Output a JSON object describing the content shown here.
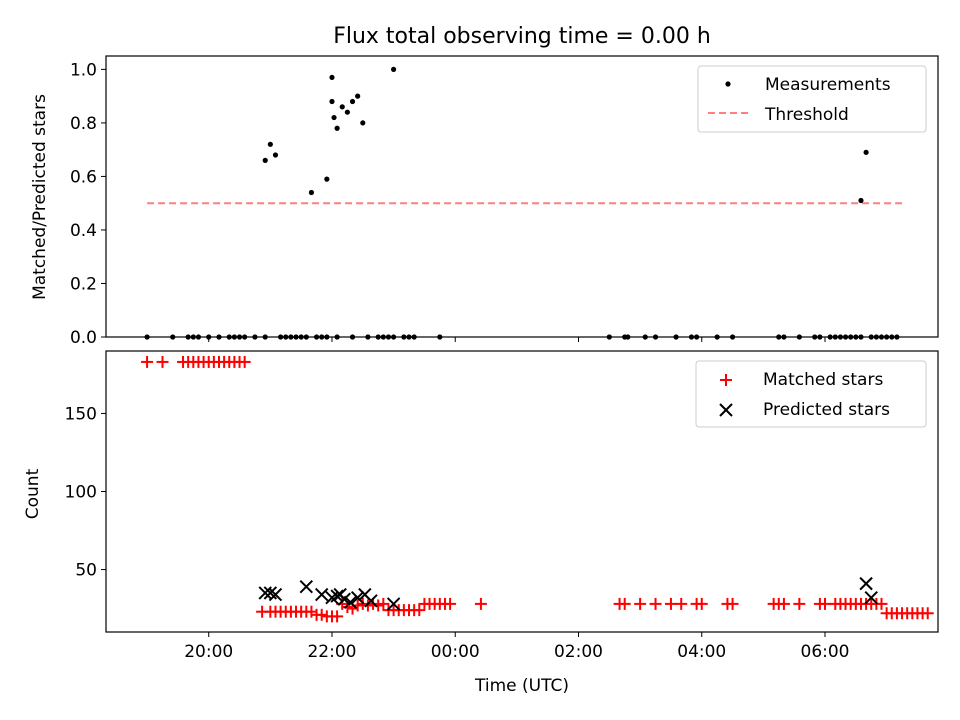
{
  "figure": {
    "title": "Flux total observing time = 0.00 h"
  },
  "chart_data": [
    {
      "type": "scatter",
      "ylabel": "Matched/Predicted stars",
      "xlim": [
        "18:20",
        "07:50"
      ],
      "ylim": [
        0,
        1.05
      ],
      "yticks": [
        0.0,
        0.2,
        0.4,
        0.6,
        0.8,
        1.0
      ],
      "ytick_labels": [
        "0.0",
        "0.2",
        "0.4",
        "0.6",
        "0.8",
        "1.0"
      ],
      "grid": false,
      "legend": {
        "placement": "upper right",
        "entries": [
          {
            "label": "Measurements",
            "marker": "dot",
            "color": "#000000"
          },
          {
            "label": "Threshold",
            "marker": "dashed-line",
            "color": "#ff7f7f"
          }
        ]
      },
      "threshold": {
        "name": "Threshold",
        "value": 0.5,
        "x_start": "19:00",
        "x_end": "07:15",
        "color": "#ff7f7f",
        "style": "dashed"
      },
      "series": [
        {
          "name": "Measurements",
          "color": "#000000",
          "points": [
            [
              "19:00",
              0
            ],
            [
              "19:25",
              0
            ],
            [
              "19:40",
              0
            ],
            [
              "19:45",
              0
            ],
            [
              "19:50",
              0
            ],
            [
              "20:00",
              0
            ],
            [
              "20:10",
              0
            ],
            [
              "20:20",
              0
            ],
            [
              "20:25",
              0
            ],
            [
              "20:30",
              0
            ],
            [
              "20:35",
              0
            ],
            [
              "20:45",
              0
            ],
            [
              "20:55",
              0
            ],
            [
              "21:10",
              0
            ],
            [
              "21:15",
              0
            ],
            [
              "21:20",
              0
            ],
            [
              "21:25",
              0
            ],
            [
              "21:30",
              0
            ],
            [
              "21:35",
              0
            ],
            [
              "21:45",
              0
            ],
            [
              "21:50",
              0
            ],
            [
              "21:55",
              0
            ],
            [
              "22:05",
              0
            ],
            [
              "22:20",
              0
            ],
            [
              "22:35",
              0
            ],
            [
              "22:45",
              0
            ],
            [
              "22:50",
              0
            ],
            [
              "22:55",
              0
            ],
            [
              "23:00",
              0
            ],
            [
              "23:10",
              0
            ],
            [
              "23:15",
              0
            ],
            [
              "23:20",
              0
            ],
            [
              "23:45",
              0
            ],
            [
              "02:30",
              0
            ],
            [
              "02:45",
              0
            ],
            [
              "02:48",
              0
            ],
            [
              "03:05",
              0
            ],
            [
              "03:15",
              0
            ],
            [
              "03:35",
              0
            ],
            [
              "03:50",
              0
            ],
            [
              "03:55",
              0
            ],
            [
              "04:15",
              0
            ],
            [
              "04:30",
              0
            ],
            [
              "05:15",
              0
            ],
            [
              "05:20",
              0
            ],
            [
              "05:35",
              0
            ],
            [
              "05:50",
              0
            ],
            [
              "05:55",
              0
            ],
            [
              "06:05",
              0
            ],
            [
              "06:10",
              0
            ],
            [
              "06:15",
              0
            ],
            [
              "06:20",
              0
            ],
            [
              "06:25",
              0
            ],
            [
              "06:30",
              0
            ],
            [
              "06:35",
              0
            ],
            [
              "06:45",
              0
            ],
            [
              "06:50",
              0
            ],
            [
              "06:55",
              0
            ],
            [
              "07:00",
              0
            ],
            [
              "07:05",
              0
            ],
            [
              "07:10",
              0
            ],
            [
              "20:55",
              0.66
            ],
            [
              "21:00",
              0.72
            ],
            [
              "21:05",
              0.68
            ],
            [
              "21:40",
              0.54
            ],
            [
              "21:55",
              0.59
            ],
            [
              "22:00",
              0.88
            ],
            [
              "22:00",
              0.97
            ],
            [
              "22:02",
              0.82
            ],
            [
              "22:05",
              0.78
            ],
            [
              "22:10",
              0.86
            ],
            [
              "22:15",
              0.84
            ],
            [
              "22:20",
              0.88
            ],
            [
              "22:25",
              0.9
            ],
            [
              "22:30",
              0.8
            ],
            [
              "23:00",
              1.0
            ],
            [
              "06:35",
              0.51
            ],
            [
              "06:40",
              0.69
            ]
          ]
        }
      ]
    },
    {
      "type": "scatter",
      "xlabel": "Time (UTC)",
      "ylabel": "Count",
      "xlim": [
        "18:20",
        "07:50"
      ],
      "ylim": [
        10,
        190
      ],
      "xticks": [
        "20:00",
        "22:00",
        "00:00",
        "02:00",
        "04:00",
        "06:00"
      ],
      "yticks": [
        50,
        100,
        150
      ],
      "ytick_labels": [
        "50",
        "100",
        "150"
      ],
      "grid": false,
      "legend": {
        "placement": "upper right",
        "entries": [
          {
            "label": "Matched stars",
            "marker": "plus",
            "color": "#ff0000"
          },
          {
            "label": "Predicted stars",
            "marker": "x",
            "color": "#000000"
          }
        ]
      },
      "series": [
        {
          "name": "Matched stars",
          "color": "#ff0000",
          "marker": "plus",
          "points": [
            [
              "19:00",
              183
            ],
            [
              "19:15",
              183
            ],
            [
              "19:35",
              183
            ],
            [
              "19:40",
              183
            ],
            [
              "19:45",
              183
            ],
            [
              "19:50",
              183
            ],
            [
              "19:55",
              183
            ],
            [
              "20:00",
              183
            ],
            [
              "20:05",
              183
            ],
            [
              "20:10",
              183
            ],
            [
              "20:15",
              183
            ],
            [
              "20:20",
              183
            ],
            [
              "20:25",
              183
            ],
            [
              "20:30",
              183
            ],
            [
              "20:35",
              183
            ],
            [
              "20:52",
              23
            ],
            [
              "21:00",
              23
            ],
            [
              "21:05",
              23
            ],
            [
              "21:10",
              23
            ],
            [
              "21:15",
              23
            ],
            [
              "21:20",
              23
            ],
            [
              "21:25",
              23
            ],
            [
              "21:30",
              23
            ],
            [
              "21:35",
              23
            ],
            [
              "21:40",
              23
            ],
            [
              "21:45",
              21
            ],
            [
              "21:50",
              21
            ],
            [
              "21:55",
              20
            ],
            [
              "22:00",
              20
            ],
            [
              "22:05",
              20
            ],
            [
              "22:10",
              28
            ],
            [
              "22:15",
              26
            ],
            [
              "22:20",
              25
            ],
            [
              "22:25",
              27
            ],
            [
              "22:30",
              28
            ],
            [
              "22:35",
              27
            ],
            [
              "22:40",
              28
            ],
            [
              "22:45",
              27
            ],
            [
              "22:50",
              28
            ],
            [
              "22:55",
              24
            ],
            [
              "23:00",
              24
            ],
            [
              "23:05",
              24
            ],
            [
              "23:10",
              24
            ],
            [
              "23:15",
              24
            ],
            [
              "23:20",
              24
            ],
            [
              "23:25",
              24
            ],
            [
              "23:30",
              28
            ],
            [
              "23:35",
              28
            ],
            [
              "23:40",
              28
            ],
            [
              "23:45",
              28
            ],
            [
              "23:50",
              28
            ],
            [
              "23:55",
              28
            ],
            [
              "00:25",
              28
            ],
            [
              "02:40",
              28
            ],
            [
              "02:45",
              28
            ],
            [
              "03:00",
              28
            ],
            [
              "03:15",
              28
            ],
            [
              "03:30",
              28
            ],
            [
              "03:40",
              28
            ],
            [
              "03:55",
              28
            ],
            [
              "04:00",
              28
            ],
            [
              "04:25",
              28
            ],
            [
              "04:30",
              28
            ],
            [
              "05:10",
              28
            ],
            [
              "05:15",
              28
            ],
            [
              "05:20",
              28
            ],
            [
              "05:35",
              28
            ],
            [
              "05:55",
              28
            ],
            [
              "06:00",
              28
            ],
            [
              "06:10",
              28
            ],
            [
              "06:15",
              28
            ],
            [
              "06:20",
              28
            ],
            [
              "06:25",
              28
            ],
            [
              "06:30",
              28
            ],
            [
              "06:35",
              28
            ],
            [
              "06:40",
              28
            ],
            [
              "06:45",
              28
            ],
            [
              "06:50",
              28
            ],
            [
              "06:55",
              28
            ],
            [
              "07:00",
              22
            ],
            [
              "07:05",
              22
            ],
            [
              "07:10",
              22
            ],
            [
              "07:15",
              22
            ],
            [
              "07:20",
              22
            ],
            [
              "07:25",
              22
            ],
            [
              "07:30",
              22
            ],
            [
              "07:35",
              22
            ],
            [
              "07:40",
              22
            ]
          ]
        },
        {
          "name": "Predicted stars",
          "color": "#000000",
          "marker": "x",
          "points": [
            [
              "20:55",
              35
            ],
            [
              "21:00",
              35
            ],
            [
              "21:05",
              34
            ],
            [
              "21:35",
              39
            ],
            [
              "21:50",
              34
            ],
            [
              "22:00",
              32
            ],
            [
              "22:05",
              33
            ],
            [
              "22:08",
              34
            ],
            [
              "22:12",
              31
            ],
            [
              "22:18",
              29
            ],
            [
              "22:25",
              32
            ],
            [
              "22:32",
              34
            ],
            [
              "22:38",
              30
            ],
            [
              "23:00",
              28
            ],
            [
              "06:40",
              41
            ],
            [
              "06:45",
              32
            ]
          ]
        }
      ]
    }
  ]
}
